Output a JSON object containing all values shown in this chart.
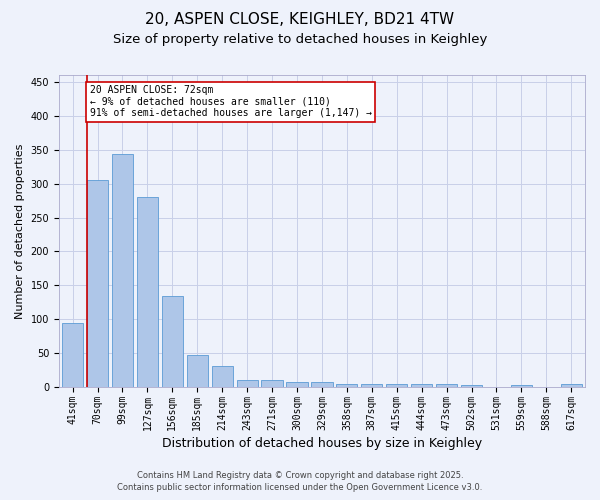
{
  "title1": "20, ASPEN CLOSE, KEIGHLEY, BD21 4TW",
  "title2": "Size of property relative to detached houses in Keighley",
  "xlabel": "Distribution of detached houses by size in Keighley",
  "ylabel": "Number of detached properties",
  "categories": [
    "41sqm",
    "70sqm",
    "99sqm",
    "127sqm",
    "156sqm",
    "185sqm",
    "214sqm",
    "243sqm",
    "271sqm",
    "300sqm",
    "329sqm",
    "358sqm",
    "387sqm",
    "415sqm",
    "444sqm",
    "473sqm",
    "502sqm",
    "531sqm",
    "559sqm",
    "588sqm",
    "617sqm"
  ],
  "values": [
    95,
    305,
    343,
    280,
    135,
    47,
    31,
    10,
    10,
    8,
    8,
    4,
    4,
    4,
    4,
    5,
    3,
    0,
    3,
    0,
    4
  ],
  "bar_color": "#aec6e8",
  "bar_edge_color": "#5b9bd5",
  "annotation_line1": "20 ASPEN CLOSE: 72sqm",
  "annotation_line2": "← 9% of detached houses are smaller (110)",
  "annotation_line3": "91% of semi-detached houses are larger (1,147) →",
  "annotation_box_color": "#ffffff",
  "annotation_box_edge": "#cc0000",
  "vline_color": "#cc0000",
  "ylim": [
    0,
    460
  ],
  "yticks": [
    0,
    50,
    100,
    150,
    200,
    250,
    300,
    350,
    400,
    450
  ],
  "footer1": "Contains HM Land Registry data © Crown copyright and database right 2025.",
  "footer2": "Contains public sector information licensed under the Open Government Licence v3.0.",
  "background_color": "#eef2fb",
  "grid_color": "#c8cfe8",
  "title_fontsize": 11,
  "subtitle_fontsize": 9.5,
  "tick_fontsize": 7,
  "ylabel_fontsize": 8,
  "xlabel_fontsize": 9,
  "footer_fontsize": 6,
  "annot_fontsize": 7
}
